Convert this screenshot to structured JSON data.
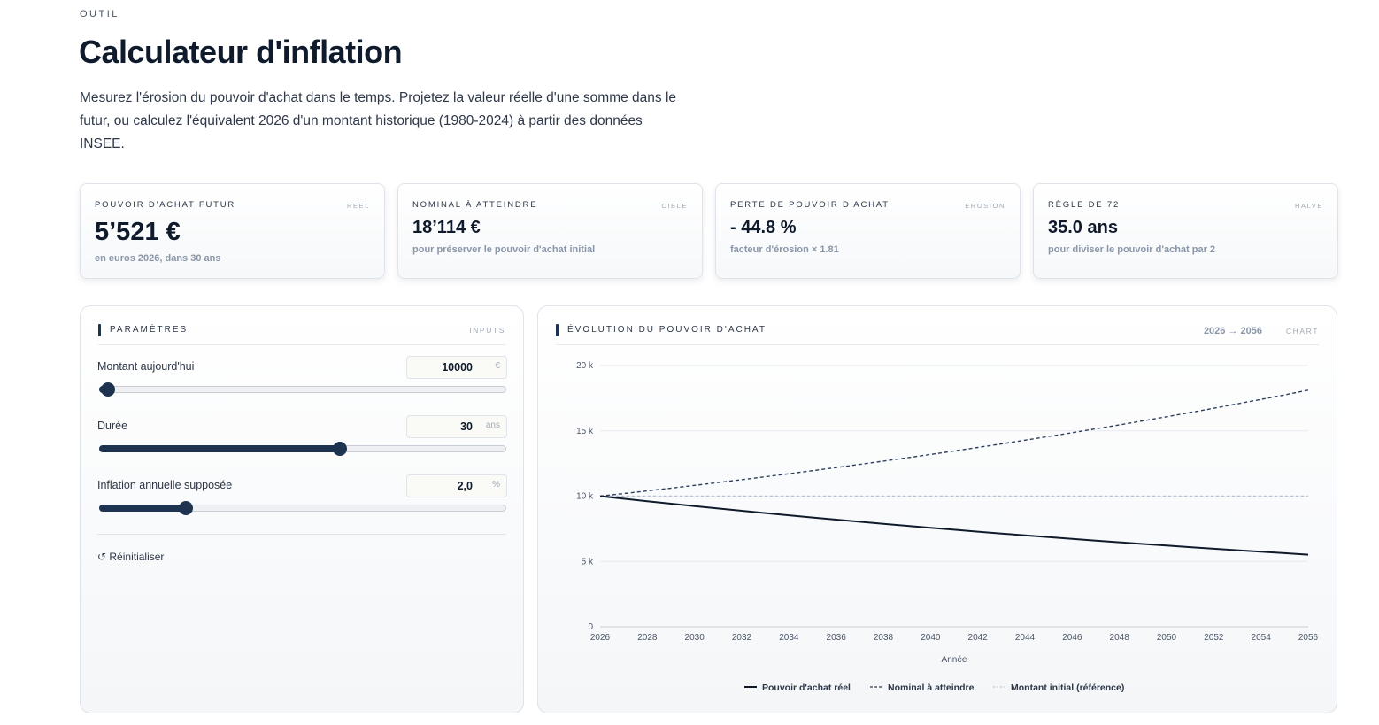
{
  "header": {
    "eyebrow": "OUTIL",
    "title": "Calculateur d'inflation",
    "description": "Mesurez l'érosion du pouvoir d'achat dans le temps. Projetez la valeur réelle d'une somme dans le futur, ou calculez l'équivalent 2026 d'un montant historique (1980-2024) à partir des données INSEE."
  },
  "kpis": [
    {
      "label": "POUVOIR D'ACHAT FUTUR",
      "tag": "REEL",
      "value": "5’521 €",
      "sub": "en euros 2026, dans 30 ans"
    },
    {
      "label": "NOMINAL À ATTEINDRE",
      "tag": "CIBLE",
      "value": "18’114 €",
      "sub": "pour préserver le pouvoir d'achat initial"
    },
    {
      "label": "PERTE DE POUVOIR D'ACHAT",
      "tag": "EROSION",
      "value": "- 44.8 %",
      "sub": "facteur d'érosion × 1.81"
    },
    {
      "label": "RÈGLE DE 72",
      "tag": "HALVE",
      "value": "35.0 ans",
      "sub": "pour diviser le pouvoir d'achat par 2"
    }
  ],
  "params": {
    "title": "PARAMÈTRES",
    "tag": "INPUTS",
    "fields": [
      {
        "label": "Montant aujourd'hui",
        "value": "10000",
        "unit": "€",
        "fraction": 0.02
      },
      {
        "label": "Durée",
        "value": "30",
        "unit": "ans",
        "fraction": 0.59
      },
      {
        "label": "Inflation annuelle supposée",
        "value": "2,0",
        "unit": "%",
        "fraction": 0.21
      }
    ],
    "reset_label": "↺ Réinitialiser"
  },
  "chart_panel": {
    "title": "ÉVOLUTION DU POUVOIR D'ACHAT",
    "range": "2026 → 2056",
    "tag": "CHART"
  },
  "chart_data": {
    "type": "line",
    "x": [
      2026,
      2027,
      2028,
      2029,
      2030,
      2031,
      2032,
      2033,
      2034,
      2035,
      2036,
      2037,
      2038,
      2039,
      2040,
      2041,
      2042,
      2043,
      2044,
      2045,
      2046,
      2047,
      2048,
      2049,
      2050,
      2051,
      2052,
      2053,
      2054,
      2055,
      2056
    ],
    "series": [
      {
        "name": "Pouvoir d'achat réel",
        "style": "solid",
        "color": "#0f1b2d",
        "values": [
          10000,
          9804,
          9612,
          9423,
          9238,
          9057,
          8880,
          8706,
          8535,
          8368,
          8203,
          8043,
          7885,
          7730,
          7579,
          7430,
          7284,
          7142,
          7002,
          6864,
          6730,
          6598,
          6468,
          6342,
          6217,
          6095,
          5976,
          5859,
          5744,
          5631,
          5521
        ]
      },
      {
        "name": "Nominal à atteindre",
        "style": "dashed",
        "color": "#2d3f5c",
        "values": [
          10000,
          10200,
          10404,
          10612,
          10824,
          11041,
          11262,
          11487,
          11717,
          11951,
          12190,
          12434,
          12682,
          12936,
          13195,
          13459,
          13728,
          14002,
          14282,
          14568,
          14859,
          15157,
          15460,
          15769,
          16084,
          16406,
          16734,
          17069,
          17410,
          17758,
          18114
        ]
      },
      {
        "name": "Montant initial (référence)",
        "style": "dotted",
        "color": "#b8c0cc",
        "values": [
          10000,
          10000,
          10000,
          10000,
          10000,
          10000,
          10000,
          10000,
          10000,
          10000,
          10000,
          10000,
          10000,
          10000,
          10000,
          10000,
          10000,
          10000,
          10000,
          10000,
          10000,
          10000,
          10000,
          10000,
          10000,
          10000,
          10000,
          10000,
          10000,
          10000,
          10000
        ]
      }
    ],
    "xlabel": "Année",
    "ylabel": "",
    "xticks": [
      "2026",
      "2028",
      "2030",
      "2032",
      "2034",
      "2036",
      "2038",
      "2040",
      "2042",
      "2044",
      "2046",
      "2048",
      "2050",
      "2052",
      "2054",
      "2056"
    ],
    "yticks": [
      0,
      5000,
      10000,
      15000,
      20000
    ],
    "ytick_labels": [
      "0",
      "5 k",
      "10 k",
      "15 k",
      "20 k"
    ],
    "ylim": [
      0,
      20000
    ],
    "xlim": [
      2026,
      2056
    ],
    "grid": true,
    "legend": "bottom-center"
  }
}
